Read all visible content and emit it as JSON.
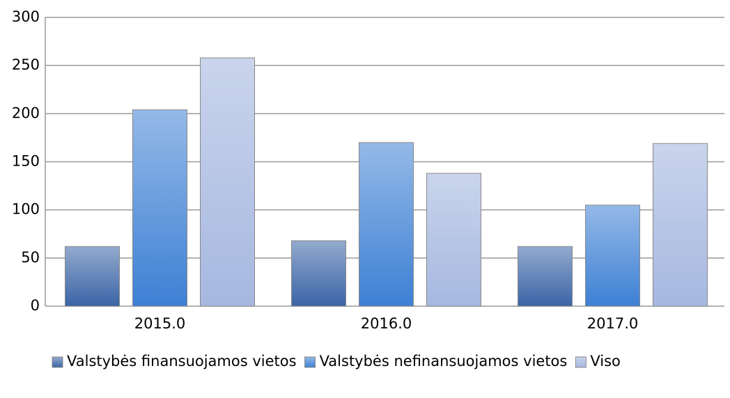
{
  "chart_data": {
    "type": "bar",
    "categories": [
      "2015.0",
      "2016.0",
      "2017.0"
    ],
    "series": [
      {
        "name": "Valstybės finansuojamos vietos",
        "color": "#3b64a6",
        "values": [
          62,
          68,
          62
        ]
      },
      {
        "name": "Valstybės nefinansuojamos vietos",
        "color": "#3d80d4",
        "values": [
          204,
          170,
          105
        ]
      },
      {
        "name": "Viso",
        "color": "#a6b8e0",
        "values": [
          258,
          138,
          169
        ]
      }
    ],
    "ylim": [
      0,
      300
    ],
    "yticks": [
      0,
      50,
      100,
      150,
      200,
      250,
      300
    ],
    "grid": true,
    "legend": "bottom"
  }
}
